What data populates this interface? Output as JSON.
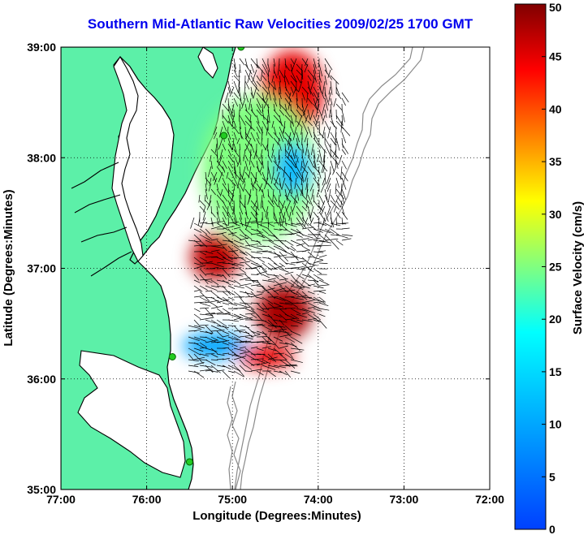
{
  "chart_data": {
    "type": "heatmap",
    "title": "Southern Mid-Atlantic Raw Velocities 2009/02/25 1700 GMT",
    "xlabel": "Longitude (Degrees:Minutes)",
    "ylabel": "Latitude (Degrees:Minutes)",
    "colorbar_label": "Surface Velocity (cm/s)",
    "x_ticks": [
      "77:00",
      "76:00",
      "75:00",
      "74:00",
      "73:00",
      "72:00"
    ],
    "x_tick_values": [
      -77,
      -76,
      -75,
      -74,
      -73,
      -72
    ],
    "y_ticks": [
      "39:00",
      "38:00",
      "37:00",
      "36:00",
      "35:00"
    ],
    "y_tick_values": [
      39,
      38,
      37,
      36,
      35
    ],
    "xlim": [
      -77,
      -72
    ],
    "ylim": [
      35,
      39
    ],
    "colorbar_ticks": [
      "50",
      "45",
      "40",
      "35",
      "30",
      "25",
      "20",
      "15",
      "10",
      "5",
      "0"
    ],
    "colorbar_values": [
      50,
      45,
      40,
      35,
      30,
      25,
      20,
      15,
      10,
      5,
      0
    ],
    "colorbar_range": [
      0,
      50
    ],
    "colormap": "jet",
    "grid": true,
    "land_color": "#5cf0a8",
    "coastline_color": "#000000",
    "bathymetry_color": "#8a8a8a",
    "station_color": "#22cc22",
    "stations": [
      {
        "lon": -74.9,
        "lat": 39.0
      },
      {
        "lon": -75.1,
        "lat": 38.2
      },
      {
        "lon": -75.7,
        "lat": 36.2
      },
      {
        "lon": -75.5,
        "lat": 35.25
      }
    ],
    "velocity_regions": [
      {
        "name": "northern-high",
        "lon": -74.3,
        "lat": 38.6,
        "speed": 45
      },
      {
        "name": "central-field",
        "lon": -74.7,
        "lat": 37.9,
        "speed": 25
      },
      {
        "name": "eastern-low",
        "lon": -74.3,
        "lat": 37.9,
        "speed": 12
      },
      {
        "name": "mouth-high",
        "lon": -75.2,
        "lat": 37.1,
        "speed": 47
      },
      {
        "name": "offshore-high",
        "lon": -74.4,
        "lat": 36.6,
        "speed": 48
      },
      {
        "name": "southern-low",
        "lon": -75.2,
        "lat": 36.3,
        "speed": 10
      },
      {
        "name": "southern-high",
        "lon": -74.6,
        "lat": 36.2,
        "speed": 45
      }
    ]
  }
}
